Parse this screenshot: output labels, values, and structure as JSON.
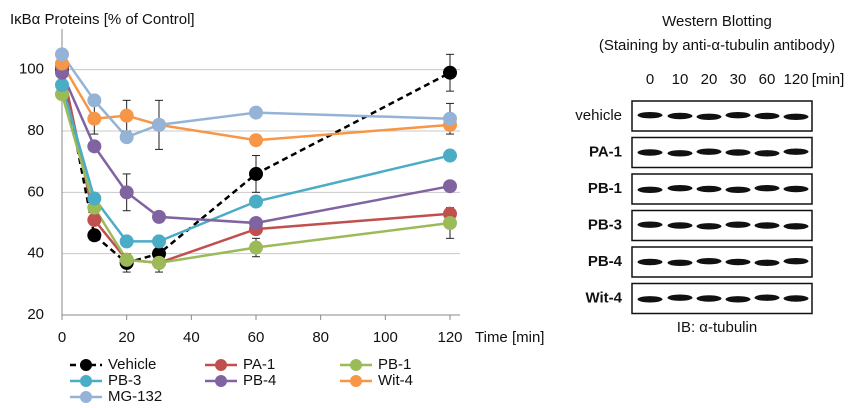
{
  "chart_data": {
    "type": "line",
    "y_label": "IκBα Proteins [% of Control]",
    "x_label": "Time [min]",
    "x": [
      0,
      10,
      20,
      30,
      60,
      120
    ],
    "xlim": [
      0,
      120
    ],
    "xticks": [
      0,
      20,
      40,
      60,
      80,
      100,
      120
    ],
    "ylim": [
      20,
      110
    ],
    "yticks": [
      20,
      40,
      60,
      80,
      100
    ],
    "grid": true,
    "series": [
      {
        "name": "Vehicle",
        "color": "#000000",
        "linestyle": "dashed",
        "values": [
          100,
          46,
          37,
          40,
          66,
          99
        ],
        "errors": [
          null,
          null,
          3,
          null,
          6,
          6
        ]
      },
      {
        "name": "PA-1",
        "color": "#c0504d",
        "values": [
          101,
          51,
          38,
          37,
          48,
          53
        ],
        "errors": [
          null,
          null,
          null,
          null,
          null,
          null
        ]
      },
      {
        "name": "PB-1",
        "color": "#9bbb59",
        "values": [
          92,
          55,
          38,
          37,
          42,
          50
        ],
        "errors": [
          null,
          null,
          null,
          3,
          3,
          5
        ]
      },
      {
        "name": "PB-3",
        "color": "#4bacc6",
        "values": [
          95,
          58,
          44,
          44,
          57,
          72
        ],
        "errors": [
          null,
          null,
          null,
          null,
          null,
          null
        ]
      },
      {
        "name": "PB-4",
        "color": "#8064a2",
        "values": [
          99,
          75,
          60,
          52,
          50,
          62
        ],
        "errors": [
          null,
          null,
          6,
          null,
          null,
          null
        ]
      },
      {
        "name": "Wit-4",
        "color": "#f79646",
        "values": [
          102,
          84,
          85,
          82,
          77,
          82
        ],
        "errors": [
          null,
          5,
          5,
          8,
          null,
          null
        ]
      },
      {
        "name": "MG-132",
        "color": "#95b3d7",
        "values": [
          105,
          90,
          78,
          82,
          86,
          84
        ],
        "errors": [
          null,
          null,
          null,
          null,
          null,
          5
        ]
      }
    ]
  },
  "blot": {
    "title": [
      "Western Blotting",
      "(Staining by anti-α-tubulin antibody)"
    ],
    "lanes": [
      "0",
      "10",
      "20",
      "30",
      "60",
      "120"
    ],
    "unit": "[min]",
    "rows": [
      "vehicle",
      "PA-1",
      "PB-1",
      "PB-3",
      "PB-4",
      "Wit-4"
    ],
    "footer": "IB: α-tubulin"
  }
}
